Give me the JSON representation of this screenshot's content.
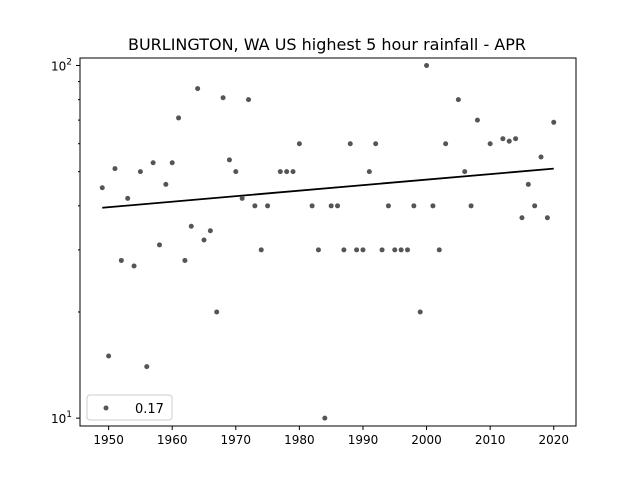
{
  "chart_data": {
    "type": "scatter",
    "title": "BURLINGTON, WA US highest 5 hour rainfall - APR",
    "xlabel": "",
    "ylabel": "",
    "yscale": "log",
    "xlim": [
      1945.5,
      2023.5
    ],
    "ylim": [
      9.5,
      105
    ],
    "x_ticks": [
      1950,
      1960,
      1970,
      1980,
      1990,
      2000,
      2010,
      2020
    ],
    "y_ticks": [
      {
        "value": 10,
        "label": "10",
        "exp": "1"
      },
      {
        "value": 100,
        "label": "10",
        "exp": "2"
      }
    ],
    "legend": {
      "label": "0.17",
      "placement": "bottom-left"
    },
    "point_color": "#555555",
    "trend_line": {
      "x": [
        1949,
        2020
      ],
      "y": [
        39.5,
        51
      ]
    },
    "x": [
      1949,
      1950,
      1951,
      1952,
      1953,
      1954,
      1955,
      1956,
      1957,
      1958,
      1959,
      1960,
      1961,
      1962,
      1963,
      1964,
      1965,
      1966,
      1967,
      1968,
      1969,
      1970,
      1971,
      1972,
      1973,
      1974,
      1975,
      1977,
      1978,
      1979,
      1980,
      1982,
      1983,
      1984,
      1985,
      1986,
      1987,
      1988,
      1989,
      1990,
      1991,
      1992,
      1993,
      1994,
      1995,
      1996,
      1997,
      1998,
      1999,
      2000,
      2001,
      2002,
      2003,
      2005,
      2006,
      2007,
      2008,
      2010,
      2012,
      2013,
      2014,
      2015,
      2016,
      2017,
      2018,
      2019,
      2020
    ],
    "y": [
      45,
      15,
      51,
      28,
      42,
      27,
      50,
      14,
      53,
      31,
      46,
      53,
      71,
      28,
      35,
      86,
      32,
      34,
      20,
      81,
      54,
      50,
      42,
      80,
      40,
      30,
      40,
      50,
      50,
      50,
      60,
      40,
      30,
      10,
      40,
      40,
      30,
      60,
      30,
      30,
      50,
      60,
      30,
      40,
      30,
      30,
      30,
      40,
      20,
      100,
      40,
      30,
      60,
      80,
      50,
      40,
      70,
      60,
      62,
      61,
      62,
      37,
      46,
      40,
      55,
      37,
      69
    ]
  }
}
